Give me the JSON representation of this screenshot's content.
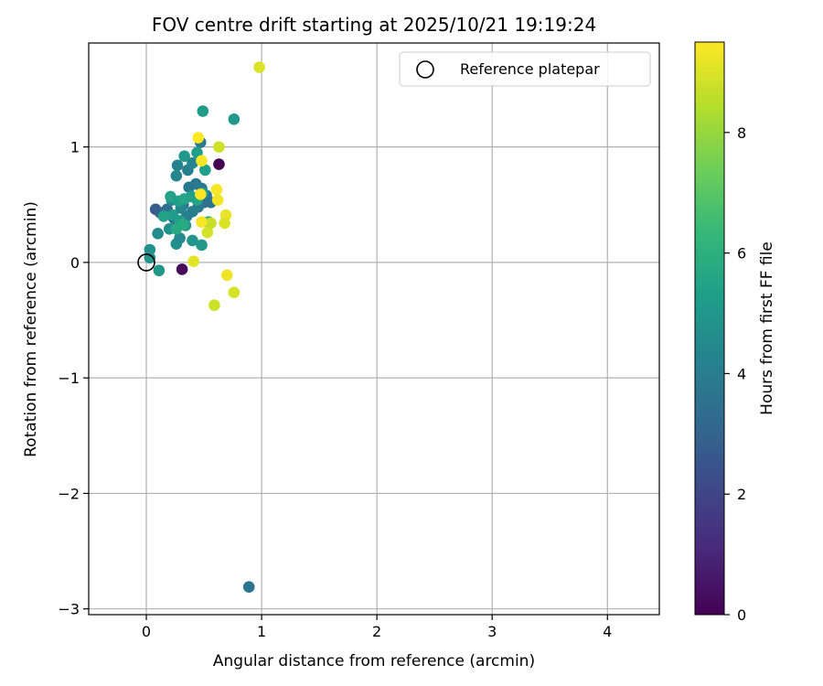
{
  "chart_data": {
    "type": "scatter",
    "title": "FOV centre drift starting at 2025/10/21 19:19:24",
    "xlabel": "Angular distance from reference (arcmin)",
    "ylabel": "Rotation from reference (arcmin)",
    "xlim": [
      -0.5,
      4.45
    ],
    "ylim": [
      -3.05,
      1.9
    ],
    "xticks": [
      0,
      1,
      2,
      3,
      4
    ],
    "xtick_labels": [
      "0",
      "1",
      "2",
      "3",
      "4"
    ],
    "yticks": [
      -3,
      -2,
      -1,
      0,
      1
    ],
    "ytick_labels": [
      "−3",
      "−2",
      "−1",
      "0",
      "1"
    ],
    "grid": true,
    "colorbar": {
      "label": "Hours from first FF file",
      "range": [
        0,
        9.5
      ],
      "ticks": [
        0,
        2,
        4,
        6,
        8
      ],
      "tick_labels": [
        "0",
        "2",
        "4",
        "6",
        "8"
      ],
      "colormap": [
        "#440154",
        "#482878",
        "#3e4989",
        "#31688e",
        "#26828e",
        "#1f9e89",
        "#35b779",
        "#6ece58",
        "#b5de2b",
        "#fde725"
      ]
    },
    "legend": {
      "position": "top-right",
      "entries": [
        {
          "label": "Reference platepar",
          "marker": "open-circle"
        }
      ]
    },
    "reference": {
      "x": 0,
      "y": 0
    },
    "points": [
      {
        "x": 0.63,
        "y": 0.85,
        "t": 0.0
      },
      {
        "x": 0.31,
        "y": -0.06,
        "t": 0.2
      },
      {
        "x": 0.08,
        "y": 0.46,
        "t": 2.8
      },
      {
        "x": 0.12,
        "y": 0.43,
        "t": 3.0
      },
      {
        "x": 0.18,
        "y": 0.46,
        "t": 3.4
      },
      {
        "x": 0.24,
        "y": 0.38,
        "t": 3.6
      },
      {
        "x": 0.32,
        "y": 0.5,
        "t": 3.5
      },
      {
        "x": 0.37,
        "y": 0.65,
        "t": 3.8
      },
      {
        "x": 0.43,
        "y": 0.68,
        "t": 3.8
      },
      {
        "x": 0.48,
        "y": 0.64,
        "t": 3.9
      },
      {
        "x": 0.52,
        "y": 0.58,
        "t": 3.7
      },
      {
        "x": 0.56,
        "y": 0.52,
        "t": 3.6
      },
      {
        "x": 0.5,
        "y": 0.52,
        "t": 3.5
      },
      {
        "x": 0.45,
        "y": 0.48,
        "t": 3.9
      },
      {
        "x": 0.4,
        "y": 0.44,
        "t": 4.1
      },
      {
        "x": 0.35,
        "y": 0.4,
        "t": 4.0
      },
      {
        "x": 0.3,
        "y": 0.47,
        "t": 4.3
      },
      {
        "x": 0.27,
        "y": 0.84,
        "t": 4.2
      },
      {
        "x": 0.36,
        "y": 0.8,
        "t": 4.1
      },
      {
        "x": 0.4,
        "y": 0.86,
        "t": 4.3
      },
      {
        "x": 0.47,
        "y": 1.04,
        "t": 3.9
      },
      {
        "x": 0.26,
        "y": 0.75,
        "t": 4.4
      },
      {
        "x": 0.22,
        "y": 0.54,
        "t": 4.6
      },
      {
        "x": 0.2,
        "y": 0.29,
        "t": 4.7
      },
      {
        "x": 0.26,
        "y": 0.16,
        "t": 4.8
      },
      {
        "x": 0.29,
        "y": 0.21,
        "t": 4.5
      },
      {
        "x": 0.1,
        "y": 0.25,
        "t": 4.6
      },
      {
        "x": 0.03,
        "y": 0.11,
        "t": 4.8
      },
      {
        "x": 0.03,
        "y": 0.04,
        "t": 4.9
      },
      {
        "x": 0.11,
        "y": -0.07,
        "t": 5.0
      },
      {
        "x": 0.4,
        "y": 0.19,
        "t": 4.9
      },
      {
        "x": 0.34,
        "y": 0.32,
        "t": 5.1
      },
      {
        "x": 0.29,
        "y": 0.36,
        "t": 5.3
      },
      {
        "x": 0.23,
        "y": 0.41,
        "t": 5.2
      },
      {
        "x": 0.15,
        "y": 0.4,
        "t": 5.4
      },
      {
        "x": 0.21,
        "y": 0.57,
        "t": 5.5
      },
      {
        "x": 0.28,
        "y": 0.53,
        "t": 5.3
      },
      {
        "x": 0.33,
        "y": 0.55,
        "t": 5.6
      },
      {
        "x": 0.39,
        "y": 0.57,
        "t": 5.4
      },
      {
        "x": 0.44,
        "y": 0.54,
        "t": 5.5
      },
      {
        "x": 0.49,
        "y": 0.6,
        "t": 5.2
      },
      {
        "x": 0.51,
        "y": 0.8,
        "t": 5.3
      },
      {
        "x": 0.44,
        "y": 0.95,
        "t": 5.3
      },
      {
        "x": 0.33,
        "y": 0.92,
        "t": 5.1
      },
      {
        "x": 0.49,
        "y": 1.31,
        "t": 5.2
      },
      {
        "x": 0.76,
        "y": 1.24,
        "t": 5.1
      },
      {
        "x": 0.48,
        "y": 0.15,
        "t": 5.0
      },
      {
        "x": 0.26,
        "y": 0.29,
        "t": 5.7
      },
      {
        "x": 0.32,
        "y": 0.33,
        "t": 5.8
      },
      {
        "x": 0.54,
        "y": 0.35,
        "t": 5.9
      },
      {
        "x": 0.89,
        "y": -2.81,
        "t": 3.7
      },
      {
        "x": 0.45,
        "y": 1.08,
        "t": 9.5
      },
      {
        "x": 0.48,
        "y": 0.88,
        "t": 9.4
      },
      {
        "x": 0.63,
        "y": 1.0,
        "t": 8.8
      },
      {
        "x": 0.47,
        "y": 0.59,
        "t": 9.5
      },
      {
        "x": 0.61,
        "y": 0.63,
        "t": 9.4
      },
      {
        "x": 0.62,
        "y": 0.54,
        "t": 9.3
      },
      {
        "x": 0.69,
        "y": 0.41,
        "t": 9.2
      },
      {
        "x": 0.68,
        "y": 0.34,
        "t": 9.0
      },
      {
        "x": 0.53,
        "y": 0.26,
        "t": 8.9
      },
      {
        "x": 0.56,
        "y": 0.34,
        "t": 8.7
      },
      {
        "x": 0.48,
        "y": 0.35,
        "t": 9.4
      },
      {
        "x": 0.41,
        "y": 0.01,
        "t": 9.1
      },
      {
        "x": 0.7,
        "y": -0.11,
        "t": 9.3
      },
      {
        "x": 0.76,
        "y": -0.26,
        "t": 8.9
      },
      {
        "x": 0.59,
        "y": -0.37,
        "t": 8.8
      },
      {
        "x": 0.98,
        "y": 1.69,
        "t": 9.0
      }
    ]
  }
}
